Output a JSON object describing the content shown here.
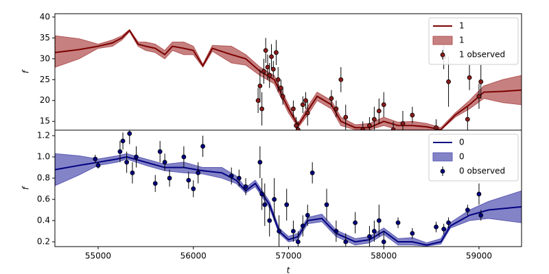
{
  "chart_data": [
    {
      "type": "line",
      "ylabel": "f",
      "legend": "upper right",
      "xlim": [
        54546,
        59447
      ],
      "ylim": [
        12.9,
        40.8
      ],
      "yticks": [
        15,
        20,
        25,
        30,
        35,
        40
      ],
      "x": [
        54550,
        54800,
        55000,
        55150,
        55250,
        55330,
        55420,
        55500,
        55600,
        55700,
        55780,
        55900,
        56000,
        56100,
        56200,
        56400,
        56550,
        56700,
        56850,
        57000,
        57100,
        57200,
        57300,
        57450,
        57550,
        57700,
        57850,
        58000,
        58150,
        58300,
        58450,
        58600,
        58750,
        58900,
        59050,
        59250,
        59447
      ],
      "series": [
        {
          "name": "1",
          "color": "#7b0000",
          "values": [
            31.5,
            32.2,
            33,
            33.8,
            35,
            36.8,
            33.5,
            33,
            32.5,
            31,
            33,
            32.5,
            32,
            28.3,
            32.5,
            31,
            30,
            27,
            25,
            18,
            14,
            17.5,
            21,
            19,
            15,
            13.5,
            13.5,
            15,
            14,
            14,
            13.7,
            13,
            16.5,
            19,
            22,
            22.2,
            22.5
          ]
        },
        {
          "name": "1",
          "color": "#b35555",
          "lower": [
            28,
            30,
            32.5,
            33,
            34.5,
            36.5,
            33,
            32,
            31.5,
            30,
            32,
            31,
            31,
            28,
            31.8,
            29,
            28.5,
            26,
            24,
            17,
            13.5,
            16.5,
            20,
            18,
            14,
            13,
            13,
            14,
            13,
            13,
            13,
            12.9,
            16,
            18,
            20.5,
            19.5,
            19
          ],
          "upper": [
            35.5,
            34.8,
            33.5,
            34.5,
            35.5,
            37,
            34,
            34,
            33.5,
            32,
            34,
            34,
            33,
            28.7,
            33.2,
            33,
            31,
            28,
            26,
            19,
            14.5,
            18.5,
            22,
            20,
            16,
            14.2,
            14.5,
            16,
            14.8,
            15,
            14.5,
            13.5,
            17,
            20,
            23.5,
            25,
            26
          ]
        },
        {
          "name": "1 observed",
          "color": "#8b1a1a",
          "x": [
            56680,
            56700,
            56720,
            56740,
            56760,
            56780,
            56800,
            56820,
            56840,
            56870,
            56890,
            56920,
            56940,
            57050,
            57080,
            57100,
            57150,
            57180,
            57200,
            57450,
            57500,
            57550,
            57600,
            57780,
            57850,
            57900,
            57950,
            58000,
            58100,
            58200,
            58300,
            58550,
            58630,
            58680,
            58880,
            58900,
            59000,
            59020
          ],
          "values": [
            20,
            23.5,
            18,
            27,
            32,
            28,
            26,
            30.5,
            27.5,
            31.5,
            25,
            23,
            21,
            18,
            14,
            13,
            19,
            20,
            17,
            20.5,
            18,
            25,
            16,
            13,
            14,
            15.5,
            17.5,
            19,
            13,
            14.5,
            16.5,
            13.5,
            30.5,
            24.5,
            15.5,
            25.5,
            21,
            24.5
          ],
          "errors": [
            3,
            4,
            4,
            3,
            3,
            3,
            3,
            3,
            2,
            3,
            3,
            2,
            2,
            2,
            2,
            2,
            2,
            2,
            3,
            2,
            2,
            3,
            3,
            2,
            2,
            3,
            3,
            3,
            2,
            3,
            2,
            2,
            3,
            6,
            3,
            3,
            3,
            4
          ]
        }
      ]
    },
    {
      "type": "line",
      "ylabel": "f",
      "xlabel": "t",
      "legend": "upper right",
      "xlim": [
        54546,
        59447
      ],
      "ylim": [
        0.155,
        1.252
      ],
      "xticks": [
        55000,
        56000,
        57000,
        58000,
        59000
      ],
      "yticks": [
        0.2,
        0.4,
        0.6,
        0.8,
        {
          "value": 1,
          "label": "1.0"
        },
        1.2
      ],
      "x": [
        54550,
        54800,
        55000,
        55200,
        55300,
        55500,
        55700,
        55900,
        56100,
        56300,
        56450,
        56550,
        56650,
        56800,
        56900,
        57000,
        57100,
        57200,
        57350,
        57500,
        57700,
        57850,
        58000,
        58150,
        58300,
        58450,
        58600,
        58700,
        58900,
        59100,
        59447
      ],
      "series": [
        {
          "name": "0",
          "color": "#000080",
          "values": [
            0.88,
            0.92,
            0.95,
            0.98,
            1.0,
            0.95,
            0.9,
            0.9,
            0.87,
            0.85,
            0.78,
            0.68,
            0.75,
            0.55,
            0.3,
            0.22,
            0.25,
            0.4,
            0.42,
            0.28,
            0.2,
            0.22,
            0.3,
            0.2,
            0.2,
            0.17,
            0.2,
            0.35,
            0.45,
            0.5,
            0.53
          ]
        },
        {
          "name": "0",
          "color": "#5a5ab4",
          "lower": [
            0.73,
            0.83,
            0.92,
            0.95,
            0.98,
            0.92,
            0.87,
            0.85,
            0.84,
            0.8,
            0.75,
            0.66,
            0.72,
            0.52,
            0.28,
            0.2,
            0.22,
            0.37,
            0.39,
            0.25,
            0.17,
            0.19,
            0.27,
            0.17,
            0.17,
            0.16,
            0.18,
            0.33,
            0.4,
            0.42,
            0.38
          ],
          "upper": [
            1.03,
            1.01,
            0.98,
            1.01,
            1.03,
            0.98,
            0.93,
            0.95,
            0.9,
            0.9,
            0.82,
            0.71,
            0.78,
            0.58,
            0.33,
            0.25,
            0.28,
            0.43,
            0.46,
            0.31,
            0.23,
            0.25,
            0.33,
            0.23,
            0.24,
            0.19,
            0.23,
            0.38,
            0.5,
            0.58,
            0.68
          ]
        },
        {
          "name": "0 observed",
          "color": "#000080",
          "x": [
            54970,
            55000,
            55230,
            55260,
            55300,
            55330,
            55360,
            55400,
            55600,
            55650,
            55700,
            55750,
            55900,
            55950,
            56000,
            56050,
            56100,
            56400,
            56480,
            56550,
            56700,
            56720,
            56750,
            56800,
            56850,
            56900,
            56980,
            57050,
            57100,
            57150,
            57200,
            57250,
            57400,
            57500,
            57600,
            57700,
            57850,
            57900,
            57950,
            58000,
            58150,
            58300,
            58550,
            58630,
            58680,
            58880,
            59000,
            59020
          ],
          "values": [
            0.98,
            0.92,
            1.05,
            1.15,
            0.95,
            1.22,
            0.85,
            1.0,
            0.75,
            1.05,
            0.95,
            0.8,
            1.0,
            0.78,
            0.7,
            0.85,
            1.1,
            0.82,
            0.8,
            0.72,
            0.95,
            0.65,
            0.55,
            0.4,
            0.6,
            0.3,
            0.55,
            0.3,
            0.2,
            0.35,
            0.45,
            0.85,
            0.55,
            0.3,
            0.2,
            0.38,
            0.25,
            0.3,
            0.4,
            0.2,
            0.38,
            0.28,
            0.34,
            0.32,
            0.38,
            0.5,
            0.65,
            0.45
          ],
          "errors": [
            0.04,
            0.03,
            0.1,
            0.08,
            0.1,
            0.1,
            0.1,
            0.1,
            0.08,
            0.1,
            0.08,
            0.08,
            0.1,
            0.08,
            0.08,
            0.1,
            0.1,
            0.08,
            0.08,
            0.08,
            0.15,
            0.15,
            0.2,
            0.15,
            0.2,
            0.15,
            0.15,
            0.1,
            0.1,
            0.1,
            0.1,
            0.1,
            0.15,
            0.1,
            0.08,
            0.1,
            0.1,
            0.1,
            0.15,
            0.1,
            0.05,
            0.05,
            0.05,
            0.05,
            0.05,
            0.05,
            0.1,
            0.05
          ]
        }
      ]
    }
  ]
}
